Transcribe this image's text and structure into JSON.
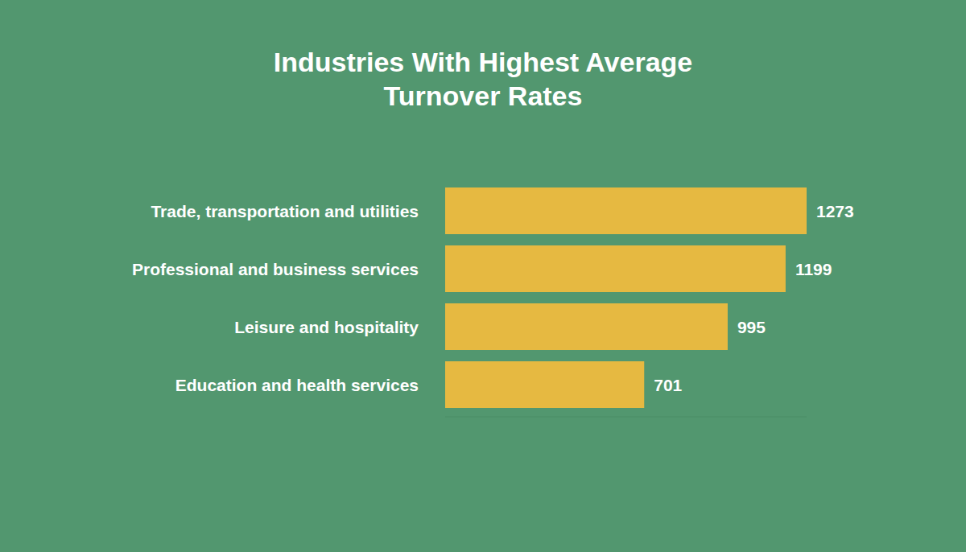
{
  "chart_data": {
    "type": "bar",
    "orientation": "horizontal",
    "title": "Industries With Highest Average Turnover Rates",
    "categories": [
      "Trade, transportation and utilities",
      "Professional and business services",
      "Leisure and hospitality",
      "Education and health services"
    ],
    "values": [
      1273,
      1199,
      995,
      701
    ],
    "color": "#e6b941",
    "xlim": [
      0,
      1273
    ],
    "data_labels": true,
    "tick_labels": "y",
    "grid": false
  }
}
